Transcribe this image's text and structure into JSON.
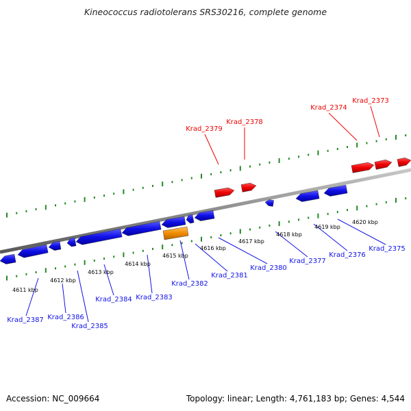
{
  "title": "Kineococcus radiotolerans SRS30216, complete genome",
  "footer": {
    "accession": "Accession: NC_009664",
    "topology": "Topology: linear; Length: 4,761,183 bp; Genes: 4,544"
  },
  "colors": {
    "forward_gene": "#ee0000",
    "reverse_gene": "#1010e6",
    "highlight_gene": "#f08c00",
    "backbone": "#8c8c8c",
    "ticks": "#228822"
  },
  "scale_labels": [
    "4611 kbp",
    "4612 kbp",
    "4613 kbp",
    "4614 kbp",
    "4615 kbp",
    "4616 kbp",
    "4617 kbp",
    "4618 kbp",
    "4619 kbp",
    "4620 kbp"
  ],
  "forward_labels": [
    "Krad_2379",
    "Krad_2378",
    "Krad_2374",
    "Krad_2373"
  ],
  "reverse_labels": [
    "Krad_2387",
    "Krad_2386",
    "Krad_2385",
    "Krad_2384",
    "Krad_2383",
    "Krad_2382",
    "Krad_2381",
    "Krad_2380",
    "Krad_2377",
    "Krad_2376",
    "Krad_2375"
  ]
}
